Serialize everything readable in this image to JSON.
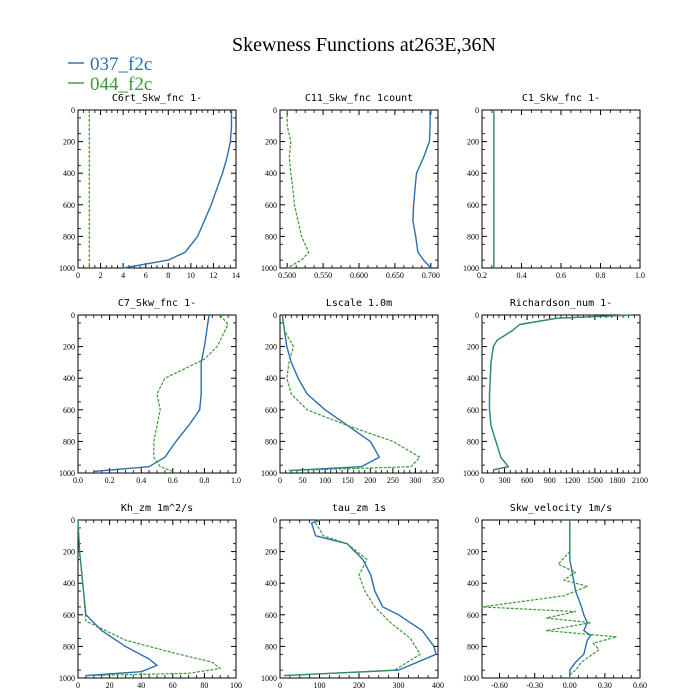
{
  "title": "Skewness Functions at263E,36N",
  "colors": {
    "blue": "#2b6fb0",
    "green": "#3a9a35"
  },
  "legend": [
    {
      "name": "037_f2c",
      "color": "#2b6fb0"
    },
    {
      "name": "044_f2c",
      "color": "#3a9a35"
    }
  ],
  "chart_data": [
    {
      "type": "line",
      "title": "C6rt_Skw_fnc   1-",
      "xlim": [
        0,
        14
      ],
      "ylim": [
        1000,
        0
      ],
      "xticks": [
        0,
        2,
        4,
        6,
        8,
        10,
        12,
        14
      ],
      "xtick_labels": [
        "0",
        "2",
        "4",
        "6",
        "8",
        "10",
        "12",
        "14"
      ],
      "yticks": [
        0,
        200,
        400,
        600,
        800,
        1000
      ],
      "series": [
        {
          "name": "037_f2c",
          "x": [
            13.6,
            13.6,
            13.5,
            13.2,
            12.8,
            12.3,
            11.8,
            11.2,
            10.6,
            9.5,
            8.0,
            4.0
          ],
          "y": [
            0,
            100,
            200,
            300,
            400,
            500,
            600,
            700,
            800,
            900,
            950,
            1000
          ]
        },
        {
          "name": "044_f2c",
          "x": [
            1,
            1
          ],
          "y": [
            0,
            1000
          ]
        }
      ]
    },
    {
      "type": "line",
      "title": "C11_Skw_fnc   1count",
      "xlim": [
        0.49,
        0.71
      ],
      "ylim": [
        1000,
        0
      ],
      "xticks": [
        0.5,
        0.55,
        0.6,
        0.65,
        0.7
      ],
      "xtick_labels": [
        "0.500",
        "0.550",
        "0.600",
        "0.650",
        "0.700"
      ],
      "yticks": [
        0,
        200,
        400,
        600,
        800,
        1000
      ],
      "series": [
        {
          "name": "037_f2c",
          "x": [
            0.699,
            0.699,
            0.698,
            0.69,
            0.68,
            0.678,
            0.676,
            0.675,
            0.679,
            0.682,
            0.69,
            0.7
          ],
          "y": [
            0,
            100,
            200,
            300,
            400,
            500,
            600,
            700,
            800,
            900,
            950,
            1000
          ]
        },
        {
          "name": "044_f2c",
          "x": [
            0.5,
            0.5,
            0.505,
            0.503,
            0.505,
            0.508,
            0.51,
            0.515,
            0.52,
            0.53,
            0.52,
            0.5
          ],
          "y": [
            0,
            100,
            200,
            300,
            400,
            500,
            600,
            700,
            800,
            900,
            950,
            1000
          ]
        }
      ]
    },
    {
      "type": "line",
      "title": "C1_Skw_fnc   1-",
      "xlim": [
        0.2,
        1.0
      ],
      "ylim": [
        1000,
        0
      ],
      "xticks": [
        0.2,
        0.4,
        0.6,
        0.8,
        1.0
      ],
      "xtick_labels": [
        "0.2",
        "0.4",
        "0.6",
        "0.8",
        "1.0"
      ],
      "yticks": [
        0,
        200,
        400,
        600,
        800,
        1000
      ],
      "series": [
        {
          "name": "037_f2c",
          "x": [
            0.26,
            0.26
          ],
          "y": [
            0,
            1000
          ]
        },
        {
          "name": "044_f2c",
          "x": [
            0.26,
            0.26
          ],
          "y": [
            0,
            1000
          ]
        }
      ]
    },
    {
      "type": "line",
      "title": "C7_Skw_fnc   1-",
      "xlim": [
        0.0,
        1.0
      ],
      "ylim": [
        1000,
        0
      ],
      "xticks": [
        0,
        0.2,
        0.4,
        0.6,
        0.8,
        1.0
      ],
      "xtick_labels": [
        "0.0",
        "0.2",
        "0.4",
        "0.6",
        "0.8",
        "1.0"
      ],
      "yticks": [
        0,
        200,
        400,
        600,
        800,
        1000
      ],
      "series": [
        {
          "name": "037_f2c",
          "x": [
            0.83,
            0.82,
            0.8,
            0.78,
            0.78,
            0.78,
            0.77,
            0.7,
            0.62,
            0.55,
            0.45,
            0.1
          ],
          "y": [
            0,
            60,
            200,
            300,
            400,
            500,
            600,
            700,
            800,
            900,
            960,
            990
          ]
        },
        {
          "name": "044_f2c",
          "x": [
            0.9,
            0.95,
            0.88,
            0.8,
            0.55,
            0.5,
            0.52,
            0.5,
            0.48,
            0.48,
            0.52,
            0.6
          ],
          "y": [
            0,
            60,
            200,
            280,
            400,
            500,
            600,
            700,
            800,
            900,
            960,
            990
          ]
        }
      ]
    },
    {
      "type": "line",
      "title": "Lscale   1.0m",
      "xlim": [
        0,
        350
      ],
      "ylim": [
        1000,
        0
      ],
      "xticks": [
        0,
        50,
        100,
        150,
        200,
        250,
        300,
        350
      ],
      "xtick_labels": [
        "0",
        "50",
        "100",
        "150",
        "200",
        "250",
        "300",
        "350"
      ],
      "yticks": [
        0,
        200,
        400,
        600,
        800,
        1000
      ],
      "series": [
        {
          "name": "037_f2c",
          "x": [
            5,
            10,
            15,
            25,
            40,
            60,
            100,
            150,
            200,
            220,
            180,
            20
          ],
          "y": [
            0,
            100,
            200,
            300,
            400,
            500,
            600,
            700,
            800,
            900,
            960,
            985
          ]
        },
        {
          "name": "044_f2c",
          "x": [
            5,
            10,
            30,
            20,
            15,
            25,
            60,
            150,
            250,
            310,
            290,
            20
          ],
          "y": [
            0,
            100,
            200,
            300,
            400,
            500,
            600,
            700,
            800,
            900,
            960,
            985
          ]
        }
      ]
    },
    {
      "type": "line",
      "title": "Richardson_num   1-",
      "xlim": [
        0,
        2100
      ],
      "ylim": [
        1000,
        0
      ],
      "xticks": [
        0,
        300,
        600,
        900,
        1200,
        1500,
        1800,
        2100
      ],
      "xtick_labels": [
        "0",
        "300",
        "600",
        "900",
        "1200",
        "1500",
        "1800",
        "2100"
      ],
      "yticks": [
        0,
        200,
        400,
        600,
        800,
        1000
      ],
      "series": [
        {
          "name": "037_f2c",
          "x": [
            2000,
            1000,
            500,
            400,
            200,
            150,
            120,
            110,
            100,
            100,
            120,
            250,
            350,
            150
          ],
          "y": [
            0,
            20,
            60,
            100,
            160,
            200,
            300,
            400,
            500,
            600,
            700,
            900,
            960,
            980
          ]
        },
        {
          "name": "044_f2c",
          "x": [
            2000,
            1000,
            500,
            400,
            200,
            150,
            120,
            110,
            100,
            100,
            120,
            250,
            350,
            150
          ],
          "y": [
            0,
            20,
            60,
            100,
            160,
            200,
            300,
            400,
            500,
            600,
            700,
            900,
            960,
            980
          ]
        }
      ]
    },
    {
      "type": "line",
      "title": "Kh_zm   1m^2/s",
      "xlim": [
        0,
        100
      ],
      "ylim": [
        1000,
        0
      ],
      "xticks": [
        0,
        20,
        40,
        60,
        80,
        100
      ],
      "xtick_labels": [
        "0",
        "20",
        "40",
        "60",
        "80",
        "100"
      ],
      "yticks": [
        0,
        200,
        400,
        600,
        800,
        1000
      ],
      "series": [
        {
          "name": "037_f2c",
          "x": [
            0,
            1,
            2,
            3,
            5,
            15,
            30,
            45,
            50,
            40,
            5
          ],
          "y": [
            0,
            200,
            300,
            400,
            600,
            700,
            800,
            880,
            920,
            960,
            985
          ]
        },
        {
          "name": "044_f2c",
          "x": [
            0,
            1,
            2,
            3,
            5,
            30,
            60,
            85,
            90,
            70,
            5
          ],
          "y": [
            0,
            200,
            300,
            400,
            640,
            760,
            840,
            900,
            940,
            970,
            985
          ]
        }
      ]
    },
    {
      "type": "line",
      "title": "tau_zm   1s",
      "xlim": [
        0,
        400
      ],
      "ylim": [
        1000,
        0
      ],
      "xticks": [
        0,
        100,
        200,
        300,
        400
      ],
      "xtick_labels": [
        "0",
        "100",
        "200",
        "300",
        "400"
      ],
      "yticks": [
        0,
        200,
        400,
        600,
        800,
        1000
      ],
      "series": [
        {
          "name": "037_f2c",
          "x": [
            100,
            80,
            90,
            170,
            210,
            230,
            240,
            260,
            300,
            360,
            390,
            395,
            300,
            10
          ],
          "y": [
            0,
            20,
            100,
            150,
            250,
            350,
            450,
            550,
            600,
            700,
            800,
            850,
            950,
            985
          ]
        },
        {
          "name": "044_f2c",
          "x": [
            100,
            90,
            110,
            170,
            220,
            200,
            215,
            240,
            280,
            330,
            355,
            290,
            10
          ],
          "y": [
            0,
            20,
            100,
            150,
            250,
            350,
            450,
            550,
            650,
            750,
            850,
            950,
            985
          ]
        }
      ]
    },
    {
      "type": "line",
      "title": "Skw_velocity   1m/s",
      "xlim": [
        -0.75,
        0.6
      ],
      "ylim": [
        1000,
        0
      ],
      "xticks": [
        -0.6,
        -0.3,
        0.0,
        0.3,
        0.6
      ],
      "xtick_labels": [
        "-0.60",
        "-0.30",
        "0.00",
        "0.30",
        "0.60"
      ],
      "yticks": [
        0,
        200,
        400,
        600,
        800,
        1000
      ],
      "series": [
        {
          "name": "037_f2c",
          "x": [
            0,
            0,
            0.05,
            0.1,
            0.12,
            0.15,
            0.12,
            0.18,
            0.15,
            0.12,
            0.05,
            0,
            0
          ],
          "y": [
            0,
            250,
            450,
            550,
            600,
            650,
            700,
            730,
            760,
            850,
            900,
            950,
            1000
          ]
        },
        {
          "name": "044_f2c",
          "x": [
            0,
            0,
            -0.1,
            0.05,
            -0.05,
            0.15,
            -0.05,
            -0.75,
            0.05,
            -0.2,
            0.18,
            -0.2,
            0.4,
            0.2,
            0.25,
            0.1,
            0.05,
            0,
            0
          ],
          "y": [
            0,
            200,
            280,
            330,
            380,
            420,
            480,
            550,
            580,
            620,
            650,
            700,
            740,
            780,
            820,
            900,
            950,
            980,
            1000
          ]
        }
      ]
    }
  ]
}
